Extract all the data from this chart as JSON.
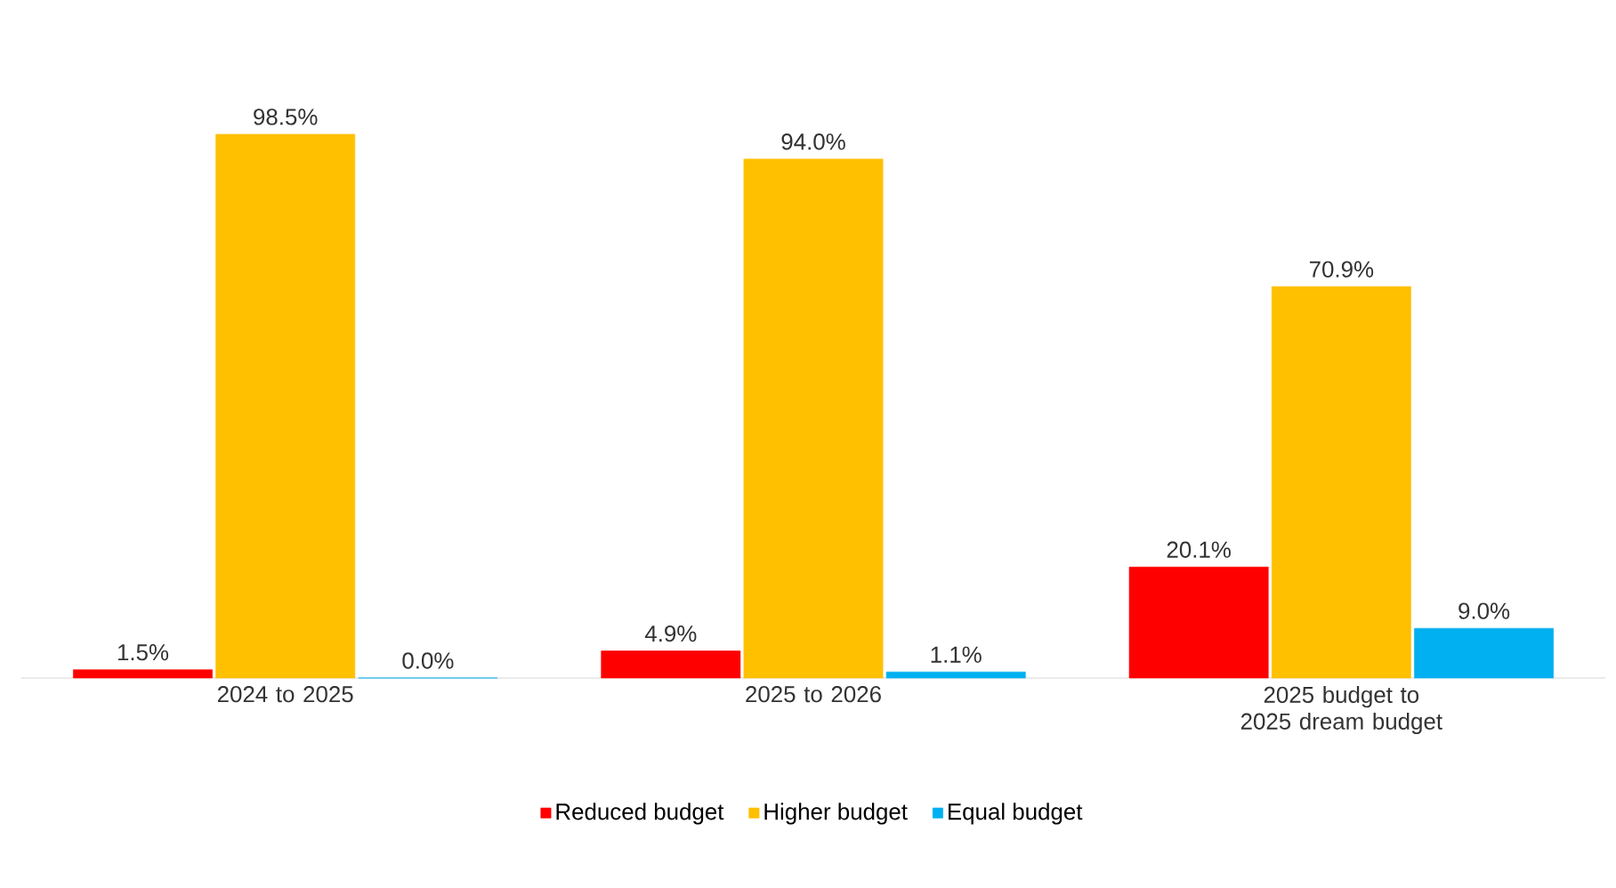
{
  "chart_data": {
    "type": "bar",
    "categories": [
      "2024 to 2025",
      "2025 to 2026",
      "2025 budget to 2025 dream budget"
    ],
    "series": [
      {
        "name": "Reduced budget",
        "color": "#ff0000",
        "values": [
          1.5,
          4.9,
          20.1
        ],
        "value_labels": [
          "1.5%",
          "4.9%",
          "20.1%"
        ]
      },
      {
        "name": "Higher budget",
        "color": "#ffc000",
        "values": [
          98.5,
          94.0,
          70.9
        ],
        "value_labels": [
          "98.5%",
          "94.0%",
          "70.9%"
        ]
      },
      {
        "name": "Equal budget",
        "color": "#00b0f0",
        "values": [
          0.0,
          1.1,
          9.0
        ],
        "value_labels": [
          "0.0%",
          "1.1%",
          "9.0%"
        ]
      }
    ],
    "legend": "bottom"
  }
}
